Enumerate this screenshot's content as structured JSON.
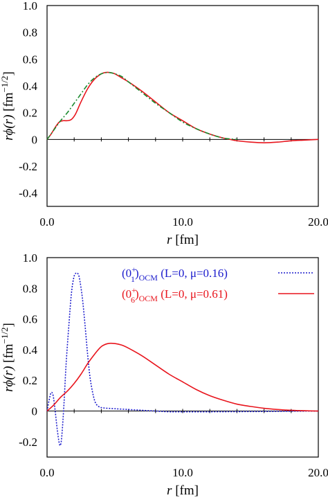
{
  "chart_data": [
    {
      "type": "line",
      "xlim": [
        0,
        20
      ],
      "ylim": [
        -0.5,
        1.0
      ],
      "xticks": [
        "0.0",
        "10.0",
        "20.0"
      ],
      "yticks": [
        "1.0",
        "0.8",
        "0.6",
        "0.4",
        "0.2",
        "0",
        "-0.2",
        "-0.4"
      ],
      "xlabel_var": "r",
      "xlabel_unit": " [fm]",
      "ylabel_var": "rϕ(r)",
      "ylabel_unit": " [fm",
      "ylabel_exp": "−1/2",
      "ylabel_close": "]",
      "grid": false,
      "series": [
        {
          "style": "solid",
          "color": "#e8141c",
          "x": [
            0,
            0.3,
            0.6,
            0.9,
            1.2,
            1.5,
            1.8,
            2.1,
            2.5,
            3.0,
            3.5,
            4.0,
            4.3,
            4.6,
            5.0,
            5.5,
            6.0,
            7.0,
            8.0,
            9.0,
            10.0,
            11.0,
            12.0,
            13.0,
            13.5,
            14.0,
            15.0,
            16.0,
            17.0,
            18.0,
            19.0,
            20.0
          ],
          "y": [
            0,
            0.04,
            0.09,
            0.13,
            0.14,
            0.14,
            0.15,
            0.19,
            0.28,
            0.38,
            0.45,
            0.49,
            0.5,
            0.5,
            0.49,
            0.46,
            0.43,
            0.36,
            0.28,
            0.2,
            0.14,
            0.08,
            0.04,
            0.01,
            0.0,
            -0.01,
            -0.02,
            -0.025,
            -0.02,
            -0.01,
            -0.005,
            0
          ]
        },
        {
          "style": "dashdot",
          "color": "#1a8a2e",
          "x": [
            0,
            0.5,
            1.0,
            1.5,
            2.0,
            2.5,
            3.0,
            3.5,
            4.0,
            4.5,
            5.0,
            5.5,
            6.0,
            7.0,
            8.0,
            9.0,
            10.0,
            11.0,
            12.0,
            13.0,
            14.0
          ],
          "y": [
            0,
            0.07,
            0.14,
            0.2,
            0.27,
            0.34,
            0.41,
            0.46,
            0.49,
            0.5,
            0.49,
            0.47,
            0.43,
            0.35,
            0.27,
            0.2,
            0.13,
            0.08,
            0.04,
            0.01,
            0
          ]
        }
      ]
    },
    {
      "type": "line",
      "xlim": [
        0,
        20
      ],
      "ylim": [
        -0.3,
        1.0
      ],
      "xticks": [
        "0.0",
        "10.0",
        "20.0"
      ],
      "yticks": [
        "1.0",
        "0.8",
        "0.6",
        "0.4",
        "0.2",
        "0",
        "-0.2"
      ],
      "xlabel_var": "r",
      "xlabel_unit": " [fm]",
      "ylabel_var": "rϕ(r)",
      "ylabel_unit": " [fm",
      "ylabel_exp": "−1/2",
      "ylabel_close": "]",
      "grid": false,
      "legend_position": "top-right",
      "series": [
        {
          "style": "dotted",
          "color": "#1a1acc",
          "legend": {
            "pre": "(0",
            "sup": "+",
            "sub": "1",
            "post": ")",
            "ocm": "OCM",
            "tail": " (L=0, μ=0.16)"
          },
          "x": [
            0,
            0.15,
            0.3,
            0.45,
            0.6,
            0.75,
            0.9,
            1.0,
            1.1,
            1.25,
            1.4,
            1.6,
            1.8,
            2.0,
            2.2,
            2.3,
            2.4,
            2.6,
            2.8,
            3.0,
            3.2,
            3.5,
            3.8,
            4.2,
            5.0,
            6.0,
            7.0,
            8.0,
            9.0,
            10.0,
            12.0,
            14.0,
            16.0,
            18.0,
            20.0
          ],
          "y": [
            0,
            0.07,
            0.12,
            0.1,
            0.0,
            -0.12,
            -0.21,
            -0.22,
            -0.15,
            0.05,
            0.3,
            0.55,
            0.77,
            0.88,
            0.9,
            0.89,
            0.86,
            0.74,
            0.56,
            0.36,
            0.2,
            0.07,
            0.03,
            0.02,
            0.015,
            0.01,
            0.005,
            0.0,
            -0.005,
            -0.005,
            -0.005,
            -0.004,
            -0.003,
            -0.001,
            0
          ]
        },
        {
          "style": "solid",
          "color": "#e8141c",
          "legend": {
            "pre": "(0",
            "sup": "+",
            "sub": "6",
            "post": ")",
            "ocm": "OCM",
            "tail": " (L=0, μ=0.61)"
          },
          "x": [
            0,
            0.5,
            1.0,
            1.5,
            2.0,
            2.5,
            3.0,
            3.5,
            4.0,
            4.5,
            5.0,
            5.5,
            6.0,
            7.0,
            8.0,
            9.0,
            10.0,
            11.0,
            12.0,
            13.0,
            14.0,
            15.0,
            16.0,
            17.0,
            18.0,
            19.0,
            20.0
          ],
          "y": [
            0,
            0.04,
            0.09,
            0.13,
            0.18,
            0.24,
            0.31,
            0.37,
            0.42,
            0.44,
            0.44,
            0.43,
            0.41,
            0.36,
            0.3,
            0.24,
            0.19,
            0.14,
            0.1,
            0.07,
            0.045,
            0.03,
            0.018,
            0.01,
            0.005,
            0.002,
            0
          ]
        }
      ]
    }
  ]
}
